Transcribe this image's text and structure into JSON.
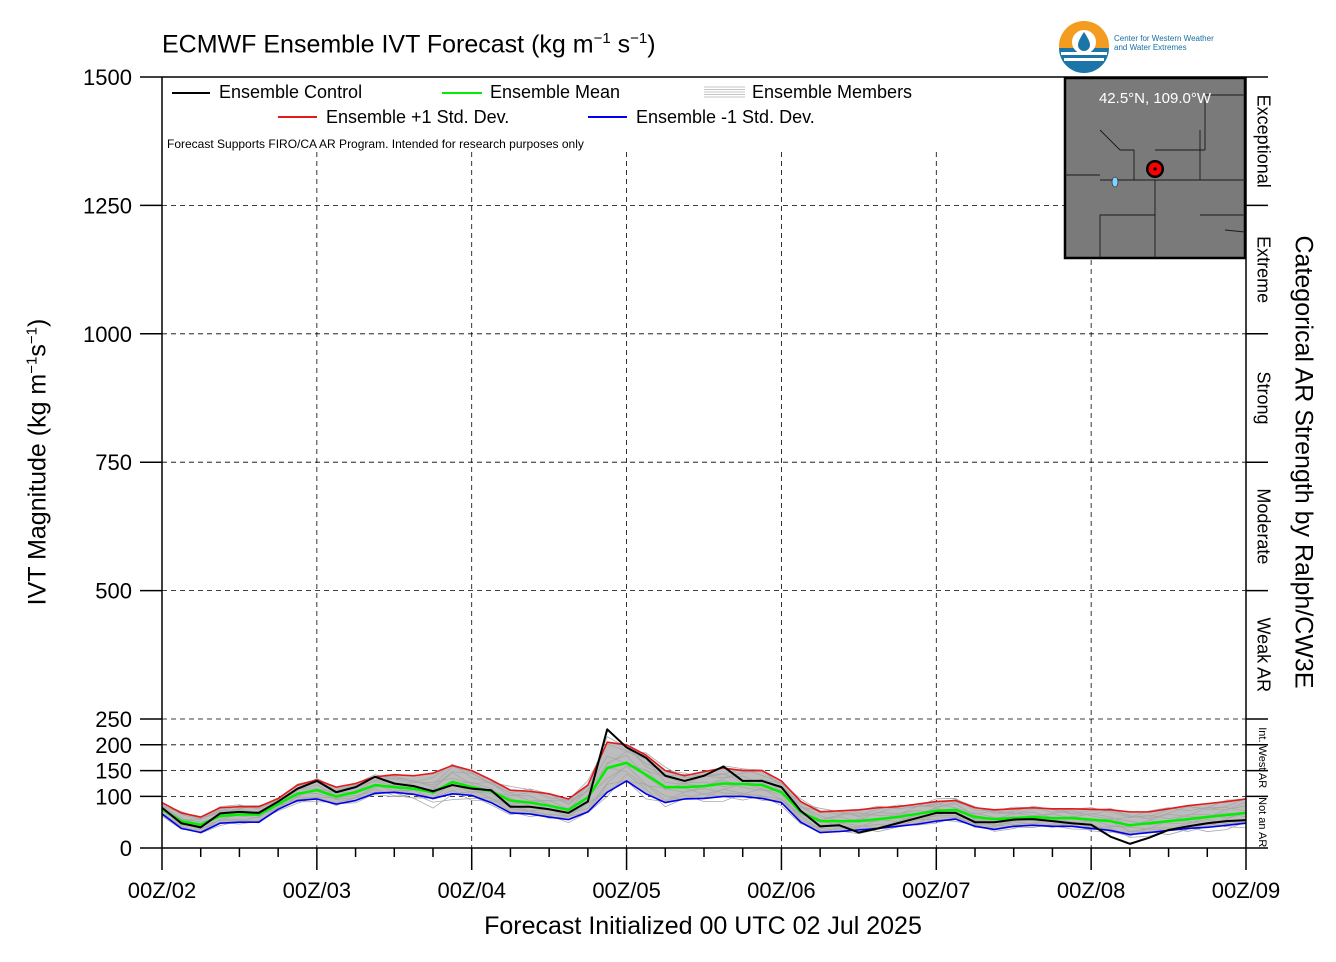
{
  "header": {
    "title_main": "ECMWF Ensemble IVT Forecast (kg m",
    "title_exp1": "−1",
    "title_mid": " s",
    "title_exp2": "−1",
    "title_end": ")"
  },
  "logo": {
    "line1": "Center for Western Weather",
    "line2": "and Water Extremes",
    "colors": {
      "orange": "#f39c1f",
      "blue": "#1b75a8"
    }
  },
  "footnote": "Forecast Supports FIRO/CA AR Program. Intended for research purposes only",
  "inset_map": {
    "label": "42.5°N, 109.0°W",
    "marker_color": "#ff0000",
    "background": "#7a7a7a"
  },
  "axes": {
    "xlabel": "Forecast Initialized 00 UTC 02 Jul 2025",
    "ylabel_main": "IVT Magnitude (kg m",
    "ylabel_exp1": "−1",
    "ylabel_mid": "s",
    "ylabel_exp2": "−1",
    "ylabel_end": ")",
    "right_label": "Categorical AR Strength by Ralph/CW3E"
  },
  "chart_data": {
    "type": "line",
    "x_unit": "hours since 00Z/02",
    "xlim": [
      0,
      168
    ],
    "x_ticks": [
      0,
      24,
      48,
      72,
      96,
      120,
      144,
      168
    ],
    "x_tick_labels": [
      "00Z/02",
      "00Z/03",
      "00Z/04",
      "00Z/05",
      "00Z/06",
      "00Z/07",
      "00Z/08",
      "00Z/09"
    ],
    "y_scale": "piecewise: 0-250 stretched, 250-1500 linear",
    "ylim": [
      0,
      1500
    ],
    "y_ticks": [
      0,
      100,
      150,
      200,
      250,
      500,
      750,
      1000,
      1250,
      1500
    ],
    "y_tick_labels": [
      "0",
      "100",
      "150",
      "200",
      "250",
      "500",
      "750",
      "1000",
      "1250",
      "1500"
    ],
    "grid": true,
    "legend_placement": "top-left",
    "categories_right": [
      {
        "label": "Not an AR",
        "from": 0,
        "to": 100
      },
      {
        "label": "Int. West AR",
        "from": 100,
        "to": 250
      },
      {
        "label": "Weak AR",
        "from": 250,
        "to": 500
      },
      {
        "label": "Moderate",
        "from": 500,
        "to": 750
      },
      {
        "label": "Strong",
        "from": 750,
        "to": 1000
      },
      {
        "label": "Extreme",
        "from": 1000,
        "to": 1250
      },
      {
        "label": "Exceptional",
        "from": 1250,
        "to": 1500
      }
    ],
    "x": [
      0,
      3,
      6,
      9,
      12,
      15,
      18,
      21,
      24,
      27,
      30,
      33,
      36,
      39,
      42,
      45,
      48,
      51,
      54,
      57,
      60,
      63,
      66,
      69,
      72,
      75,
      78,
      81,
      84,
      87,
      90,
      93,
      96,
      99,
      102,
      105,
      108,
      111,
      114,
      117,
      120,
      123,
      126,
      129,
      132,
      135,
      138,
      141,
      144,
      147,
      150,
      153,
      156,
      159,
      162,
      165,
      168
    ],
    "series": [
      {
        "name": "Ensemble Control",
        "color": "#000000",
        "width": 2,
        "values": [
          78,
          48,
          40,
          67,
          70,
          68,
          90,
          115,
          130,
          108,
          118,
          138,
          125,
          120,
          110,
          122,
          115,
          112,
          80,
          80,
          75,
          68,
          90,
          230,
          195,
          175,
          140,
          130,
          140,
          158,
          130,
          130,
          118,
          72,
          42,
          44,
          30,
          38,
          48,
          58,
          68,
          68,
          50,
          50,
          55,
          56,
          52,
          48,
          45,
          22,
          8,
          20,
          35,
          42,
          48,
          52,
          54
        ]
      },
      {
        "name": "Ensemble Mean",
        "color": "#00ee00",
        "width": 2.5,
        "values": [
          75,
          52,
          45,
          62,
          65,
          65,
          85,
          105,
          112,
          100,
          108,
          122,
          118,
          115,
          108,
          128,
          118,
          110,
          92,
          88,
          82,
          74,
          98,
          155,
          165,
          142,
          118,
          118,
          120,
          125,
          124,
          122,
          108,
          70,
          52,
          52,
          52,
          56,
          60,
          66,
          72,
          74,
          60,
          56,
          58,
          60,
          58,
          58,
          55,
          52,
          44,
          48,
          52,
          56,
          60,
          64,
          68
        ]
      },
      {
        "name": "Ensemble +1 Std. Dev.",
        "color": "#e31a1c",
        "width": 1.6,
        "values": [
          88,
          68,
          60,
          78,
          80,
          80,
          96,
          122,
          132,
          118,
          125,
          138,
          142,
          140,
          145,
          160,
          150,
          132,
          112,
          110,
          105,
          95,
          122,
          205,
          200,
          180,
          150,
          140,
          148,
          155,
          150,
          150,
          130,
          90,
          70,
          72,
          74,
          78,
          80,
          85,
          90,
          92,
          78,
          74,
          76,
          78,
          76,
          76,
          75,
          74,
          70,
          70,
          76,
          82,
          86,
          90,
          95
        ]
      },
      {
        "name": "Ensemble -1 Std. Dev.",
        "color": "#0000ee",
        "width": 1.6,
        "values": [
          66,
          38,
          30,
          48,
          50,
          50,
          75,
          92,
          95,
          85,
          92,
          106,
          108,
          104,
          96,
          105,
          102,
          88,
          68,
          66,
          60,
          55,
          70,
          108,
          130,
          105,
          88,
          95,
          96,
          100,
          100,
          96,
          88,
          50,
          30,
          32,
          35,
          38,
          42,
          46,
          52,
          56,
          42,
          36,
          42,
          44,
          42,
          42,
          38,
          34,
          26,
          30,
          34,
          38,
          40,
          44,
          48
        ]
      }
    ],
    "legend": [
      {
        "name": "Ensemble Control",
        "color": "#000000"
      },
      {
        "name": "Ensemble Mean",
        "color": "#00ee00"
      },
      {
        "name": "Ensemble Members",
        "color": "#aaaaaa"
      },
      {
        "name": "Ensemble +1 Std. Dev.",
        "color": "#e31a1c"
      },
      {
        "name": "Ensemble -1 Std. Dev.",
        "color": "#0000ee"
      }
    ]
  }
}
